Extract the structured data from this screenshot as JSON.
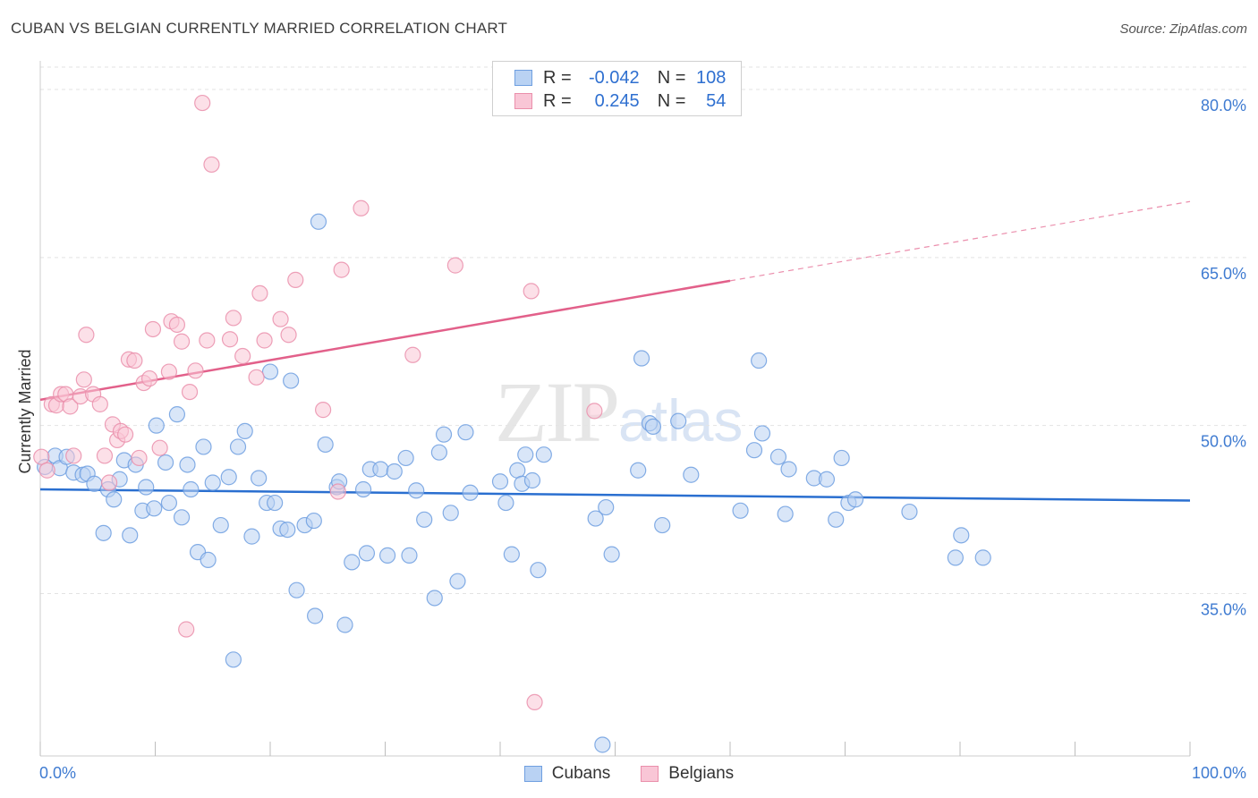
{
  "title": "CUBAN VS BELGIAN CURRENTLY MARRIED CORRELATION CHART",
  "source": "Source: ZipAtlas.com",
  "watermark": {
    "zip": "ZIP",
    "atlas": "atlas"
  },
  "legend": {
    "rows": [
      {
        "r_label": "R =",
        "r_value": "-0.042",
        "n_label": "N =",
        "n_value": "108"
      },
      {
        "r_label": "R =",
        "r_value": "0.245",
        "n_label": "N =",
        "n_value": "54"
      }
    ]
  },
  "bottom_legend": {
    "cubans": "Cubans",
    "belgians": "Belgians"
  },
  "colors": {
    "cubans_fill": "#b9d2f3",
    "cubans_stroke": "#6f9fe0",
    "cubans_line": "#2a6fd0",
    "belgians_fill": "#f9c6d6",
    "belgians_stroke": "#ea8fab",
    "belgians_line": "#e2608a",
    "tick_text": "#3f7bd1",
    "grid": "#e3e3e3"
  },
  "chart_data": {
    "type": "scatter",
    "title": "CUBAN VS BELGIAN CURRENTLY MARRIED CORRELATION CHART",
    "xlabel": "",
    "ylabel": "Currently Married",
    "xlim": [
      0,
      100
    ],
    "ylim": [
      20.5,
      82
    ],
    "x_tick_labels": [
      "0.0%",
      "100.0%"
    ],
    "y_ticks": [
      35,
      50,
      65,
      80
    ],
    "y_tick_labels": [
      "35.0%",
      "50.0%",
      "65.0%",
      "80.0%"
    ],
    "grid": true,
    "legend_position": "top-center",
    "series": [
      {
        "name": "Cubans",
        "r": -0.042,
        "n": 108,
        "trend": {
          "x": [
            0,
            100
          ],
          "y": [
            44.3,
            43.3
          ],
          "dashed_from": null
        },
        "points": [
          [
            0.4,
            46.3
          ],
          [
            1.3,
            47.3
          ],
          [
            1.7,
            46.2
          ],
          [
            2.3,
            47.2
          ],
          [
            2.9,
            45.8
          ],
          [
            3.7,
            45.6
          ],
          [
            4.1,
            45.7
          ],
          [
            4.7,
            44.8
          ],
          [
            5.5,
            40.4
          ],
          [
            5.9,
            44.3
          ],
          [
            6.4,
            43.4
          ],
          [
            6.9,
            45.2
          ],
          [
            7.3,
            46.9
          ],
          [
            7.8,
            40.2
          ],
          [
            8.3,
            46.5
          ],
          [
            8.9,
            42.4
          ],
          [
            9.2,
            44.5
          ],
          [
            9.9,
            42.6
          ],
          [
            10.1,
            50.0
          ],
          [
            10.9,
            46.7
          ],
          [
            11.2,
            43.1
          ],
          [
            11.9,
            51.0
          ],
          [
            12.3,
            41.8
          ],
          [
            12.8,
            46.5
          ],
          [
            13.1,
            44.3
          ],
          [
            13.7,
            38.7
          ],
          [
            14.2,
            48.1
          ],
          [
            14.6,
            38.0
          ],
          [
            15.0,
            44.9
          ],
          [
            15.7,
            41.1
          ],
          [
            16.4,
            45.4
          ],
          [
            16.8,
            29.1
          ],
          [
            17.2,
            48.1
          ],
          [
            17.8,
            49.5
          ],
          [
            18.4,
            40.1
          ],
          [
            19.0,
            45.3
          ],
          [
            19.7,
            43.1
          ],
          [
            20.0,
            54.8
          ],
          [
            20.4,
            43.1
          ],
          [
            20.9,
            40.8
          ],
          [
            21.5,
            40.7
          ],
          [
            21.8,
            54.0
          ],
          [
            22.3,
            35.3
          ],
          [
            23.0,
            41.1
          ],
          [
            23.8,
            41.5
          ],
          [
            23.9,
            33.0
          ],
          [
            24.2,
            68.2
          ],
          [
            24.8,
            48.3
          ],
          [
            25.8,
            44.5
          ],
          [
            26.0,
            45.0
          ],
          [
            26.5,
            32.2
          ],
          [
            27.1,
            37.8
          ],
          [
            28.1,
            44.3
          ],
          [
            28.4,
            38.6
          ],
          [
            28.7,
            46.1
          ],
          [
            29.6,
            46.1
          ],
          [
            30.2,
            38.4
          ],
          [
            30.8,
            45.9
          ],
          [
            31.8,
            47.1
          ],
          [
            32.1,
            38.4
          ],
          [
            32.7,
            44.2
          ],
          [
            33.4,
            41.6
          ],
          [
            34.3,
            34.6
          ],
          [
            34.7,
            47.6
          ],
          [
            35.1,
            49.2
          ],
          [
            35.7,
            42.2
          ],
          [
            36.3,
            36.1
          ],
          [
            37.0,
            49.4
          ],
          [
            37.4,
            44.0
          ],
          [
            40.0,
            45.0
          ],
          [
            40.5,
            43.1
          ],
          [
            41.0,
            38.5
          ],
          [
            41.5,
            46.0
          ],
          [
            41.9,
            44.8
          ],
          [
            42.2,
            47.4
          ],
          [
            42.8,
            45.1
          ],
          [
            43.3,
            37.1
          ],
          [
            43.8,
            47.4
          ],
          [
            48.3,
            41.7
          ],
          [
            48.9,
            21.5
          ],
          [
            49.2,
            42.7
          ],
          [
            49.7,
            38.5
          ],
          [
            52.0,
            46.0
          ],
          [
            52.3,
            56.0
          ],
          [
            53.0,
            50.2
          ],
          [
            53.3,
            49.9
          ],
          [
            54.1,
            41.1
          ],
          [
            55.5,
            50.4
          ],
          [
            56.6,
            45.6
          ],
          [
            60.9,
            42.4
          ],
          [
            62.1,
            47.8
          ],
          [
            62.5,
            55.8
          ],
          [
            62.8,
            49.3
          ],
          [
            64.2,
            47.2
          ],
          [
            64.8,
            42.1
          ],
          [
            65.1,
            46.1
          ],
          [
            67.3,
            45.3
          ],
          [
            68.4,
            45.2
          ],
          [
            69.2,
            41.6
          ],
          [
            69.7,
            47.1
          ],
          [
            70.3,
            43.1
          ],
          [
            70.9,
            43.4
          ],
          [
            75.6,
            42.3
          ],
          [
            79.6,
            38.2
          ],
          [
            80.1,
            40.2
          ],
          [
            82.0,
            38.2
          ]
        ]
      },
      {
        "name": "Belgians",
        "r": 0.245,
        "n": 54,
        "trend": {
          "x": [
            0,
            100
          ],
          "y": [
            52.3,
            70.0
          ],
          "dashed_from": 60
        },
        "points": [
          [
            0.1,
            47.2
          ],
          [
            0.6,
            46.0
          ],
          [
            1.0,
            51.9
          ],
          [
            1.4,
            51.8
          ],
          [
            1.8,
            52.8
          ],
          [
            2.2,
            52.8
          ],
          [
            2.6,
            51.7
          ],
          [
            2.9,
            47.3
          ],
          [
            3.5,
            52.6
          ],
          [
            3.8,
            54.1
          ],
          [
            4.0,
            58.1
          ],
          [
            4.6,
            52.8
          ],
          [
            5.2,
            51.9
          ],
          [
            5.6,
            47.3
          ],
          [
            6.0,
            44.9
          ],
          [
            6.3,
            50.1
          ],
          [
            6.7,
            48.7
          ],
          [
            7.0,
            49.5
          ],
          [
            7.4,
            49.2
          ],
          [
            7.7,
            55.9
          ],
          [
            8.2,
            55.8
          ],
          [
            8.6,
            47.1
          ],
          [
            9.0,
            53.8
          ],
          [
            9.5,
            54.2
          ],
          [
            9.8,
            58.6
          ],
          [
            10.4,
            48.0
          ],
          [
            11.2,
            54.8
          ],
          [
            11.4,
            59.3
          ],
          [
            11.9,
            59.0
          ],
          [
            12.3,
            57.5
          ],
          [
            12.7,
            31.8
          ],
          [
            13.0,
            53.0
          ],
          [
            13.5,
            54.9
          ],
          [
            14.1,
            78.8
          ],
          [
            14.5,
            57.6
          ],
          [
            14.9,
            73.3
          ],
          [
            16.5,
            57.7
          ],
          [
            16.8,
            59.6
          ],
          [
            17.6,
            56.2
          ],
          [
            18.8,
            54.3
          ],
          [
            19.1,
            61.8
          ],
          [
            19.5,
            57.6
          ],
          [
            20.9,
            59.5
          ],
          [
            21.6,
            58.1
          ],
          [
            22.2,
            63.0
          ],
          [
            24.6,
            51.4
          ],
          [
            25.9,
            44.1
          ],
          [
            26.2,
            63.9
          ],
          [
            27.9,
            69.4
          ],
          [
            32.4,
            56.3
          ],
          [
            36.1,
            64.3
          ],
          [
            42.7,
            62.0
          ],
          [
            43.0,
            25.3
          ],
          [
            48.2,
            51.3
          ]
        ]
      }
    ]
  }
}
